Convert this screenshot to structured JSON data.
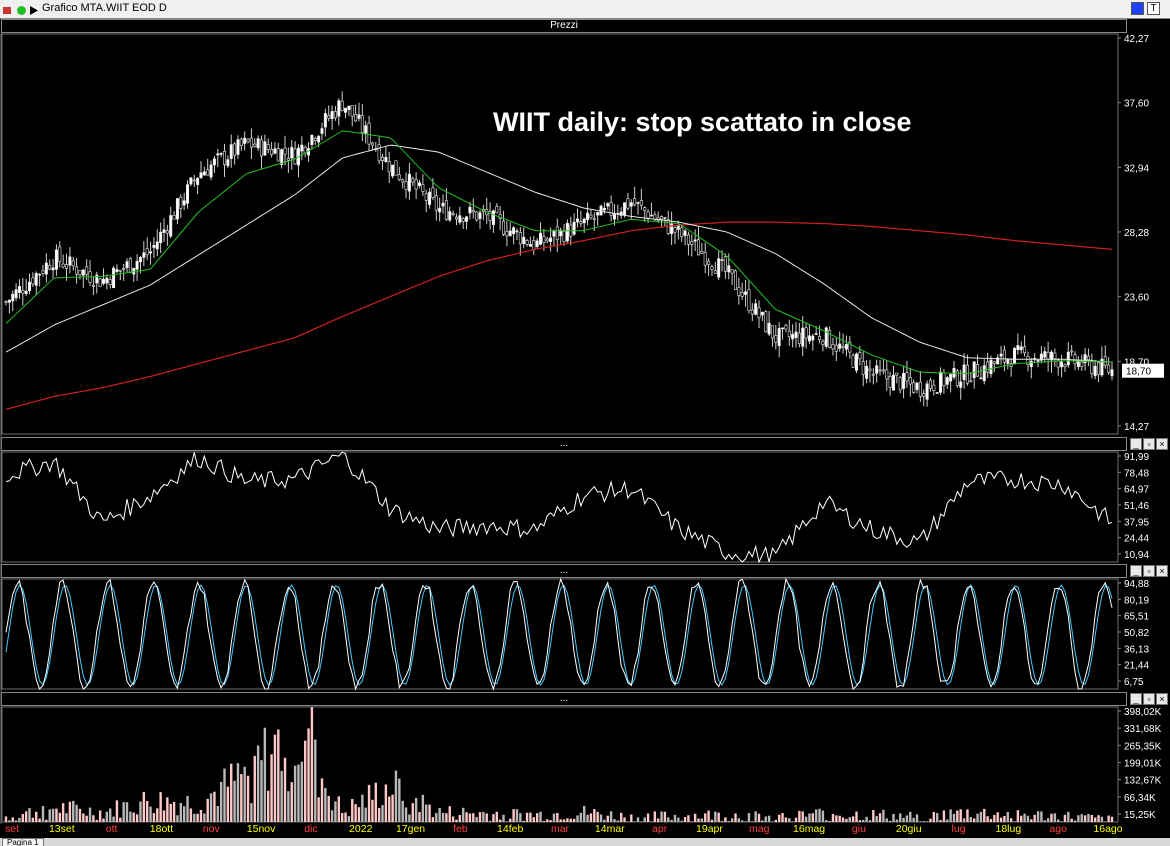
{
  "window": {
    "title": "Grafico MTA.WIIT EOD D"
  },
  "panels": {
    "price": {
      "header": "Prezzi",
      "annotation": "WIIT daily: stop scattato in close",
      "last_price": "18,70",
      "y_ticks": [
        "42,27",
        "37,60",
        "32,94",
        "28,28",
        "23,60",
        "18,70",
        "14,27"
      ]
    },
    "rsi": {
      "header": "...",
      "y_ticks": [
        "91,99",
        "78,48",
        "64,97",
        "51,46",
        "37,95",
        "24,44",
        "10,94"
      ]
    },
    "stoch": {
      "header": "...",
      "y_ticks": [
        "94,88",
        "80,19",
        "65,51",
        "50,82",
        "36,13",
        "21,44",
        "6,75"
      ]
    },
    "volume": {
      "header": "...",
      "y_ticks": [
        "398,02K",
        "331,68K",
        "265,35K",
        "199,01K",
        "132,67K",
        "66,34K",
        "15,25K"
      ]
    }
  },
  "x_axis_labels": [
    {
      "label": "set",
      "color": "#ff4040"
    },
    {
      "label": "13set",
      "color": "#ffff00"
    },
    {
      "label": "ott",
      "color": "#ff4040"
    },
    {
      "label": "18ott",
      "color": "#ffff00"
    },
    {
      "label": "nov",
      "color": "#ff4040"
    },
    {
      "label": "15nov",
      "color": "#ffff00"
    },
    {
      "label": "dic",
      "color": "#ff4040"
    },
    {
      "label": "2022",
      "color": "#ffff00"
    },
    {
      "label": "17gen",
      "color": "#ffff00"
    },
    {
      "label": "feb",
      "color": "#ff4040"
    },
    {
      "label": "14feb",
      "color": "#ffff00"
    },
    {
      "label": "mar",
      "color": "#ff4040"
    },
    {
      "label": "14mar",
      "color": "#ffff00"
    },
    {
      "label": "apr",
      "color": "#ff4040"
    },
    {
      "label": "19apr",
      "color": "#ffff00"
    },
    {
      "label": "mag",
      "color": "#ff4040"
    },
    {
      "label": "16mag",
      "color": "#ffff00"
    },
    {
      "label": "giu",
      "color": "#ff4040"
    },
    {
      "label": "20giu",
      "color": "#ffff00"
    },
    {
      "label": "lug",
      "color": "#ff4040"
    },
    {
      "label": "18lug",
      "color": "#ffff00"
    },
    {
      "label": "ago",
      "color": "#ff4040"
    },
    {
      "label": "16ago",
      "color": "#ffff00"
    }
  ],
  "footer": {
    "tab_label": "Pagina 1"
  },
  "colors": {
    "bg": "#000000",
    "ma_short": "#21c021",
    "ma_medium": "#e8e8e8",
    "ma_long": "#d02020",
    "stoch_k": "#ffffff",
    "stoch_d": "#40c8ff",
    "vol_up": "#ffc8c8"
  },
  "chart_data": {
    "type": "candlestick",
    "x": [
      "2021-08-30",
      "2021-09-13",
      "2021-10-01",
      "2021-10-18",
      "2021-11-01",
      "2021-11-15",
      "2021-12-01",
      "2022-01-03",
      "2022-01-17",
      "2022-02-01",
      "2022-02-14",
      "2022-03-01",
      "2022-03-14",
      "2022-04-01",
      "2022-04-19",
      "2022-05-02",
      "2022-05-16",
      "2022-06-01",
      "2022-06-20",
      "2022-07-01",
      "2022-07-18",
      "2022-08-01",
      "2022-08-16",
      "2022-08-24"
    ],
    "close": [
      23.5,
      26.6,
      25.0,
      27.0,
      32.5,
      34.6,
      33.8,
      37.5,
      33.0,
      30.0,
      29.5,
      27.5,
      29.0,
      30.5,
      28.3,
      25.5,
      21.0,
      21.2,
      18.5,
      17.5,
      18.5,
      19.8,
      19.5,
      18.7
    ],
    "ma_short": [
      22.0,
      25.2,
      25.3,
      25.8,
      29.8,
      32.5,
      33.5,
      35.5,
      35.0,
      31.5,
      29.8,
      28.5,
      28.5,
      29.3,
      29.0,
      26.7,
      23.0,
      21.5,
      19.8,
      18.6,
      18.5,
      19.2,
      19.4,
      19.3
    ],
    "ma_medium": [
      20.0,
      21.9,
      23.3,
      24.7,
      26.8,
      28.9,
      31.0,
      33.6,
      34.5,
      34.0,
      32.6,
      31.2,
      30.1,
      29.5,
      29.1,
      28.4,
      26.9,
      24.8,
      22.4,
      20.7,
      19.6,
      19.5,
      19.5,
      19.3
    ],
    "ma_long": [
      16.0,
      16.9,
      17.5,
      18.3,
      19.2,
      20.1,
      21.0,
      22.5,
      23.9,
      25.3,
      26.4,
      27.2,
      27.8,
      28.5,
      28.9,
      29.1,
      29.1,
      29.0,
      28.8,
      28.5,
      28.2,
      27.8,
      27.5,
      27.2
    ],
    "rsi": [
      75,
      85,
      40,
      60,
      88,
      70,
      72,
      90,
      50,
      35,
      38,
      35,
      60,
      65,
      35,
      18,
      15,
      55,
      35,
      25,
      70,
      72,
      68,
      40
    ],
    "stoch_k": [
      65,
      85,
      30,
      85,
      75,
      90,
      25,
      85,
      40,
      25,
      85,
      30,
      80,
      30,
      80,
      20,
      20,
      85,
      30,
      25,
      85,
      40,
      80,
      35
    ],
    "volume": [
      40,
      80,
      60,
      110,
      100,
      220,
      395,
      60,
      170,
      60,
      55,
      50,
      60,
      40,
      45,
      50,
      40,
      55,
      50,
      40,
      60,
      50,
      45,
      30
    ],
    "y_ranges": {
      "price": [
        14.27,
        42.27
      ],
      "rsi": [
        10.94,
        91.99
      ],
      "stoch": [
        6.75,
        94.88
      ],
      "volume_k": [
        15.25,
        398.02
      ]
    },
    "series": [
      {
        "name": "",
        "note": "price candles"
      },
      {
        "name": "",
        "note": "moving averages"
      }
    ],
    "title": "WIIT daily: stop scattato in close"
  }
}
